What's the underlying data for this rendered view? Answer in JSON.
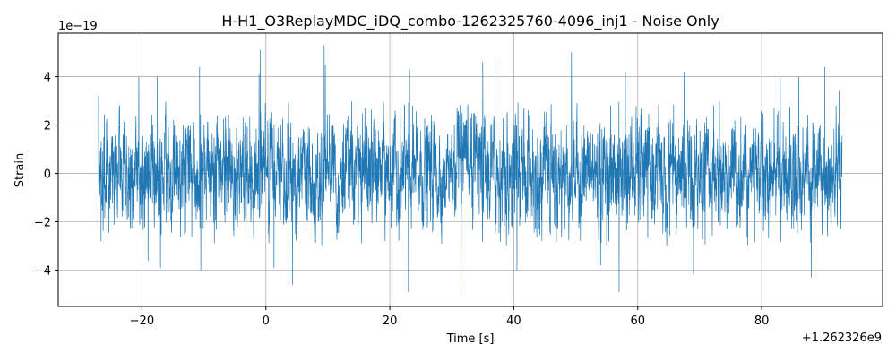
{
  "chart_data": {
    "type": "line",
    "title": "H-H1_O3ReplayMDC_iDQ_combo-1262325760-4096_inj1 - Noise Only",
    "xlabel": "Time [s]",
    "ylabel": "Strain",
    "x_offset_label": "+1.262326e9",
    "y_scale_label": "1e−19",
    "xlim": [
      -33.5,
      99.5
    ],
    "ylim": [
      -5.5,
      5.8
    ],
    "x_ticks": [
      -20,
      0,
      20,
      40,
      60,
      80
    ],
    "x_tick_labels": [
      "−20",
      "0",
      "20",
      "40",
      "60",
      "80"
    ],
    "y_ticks": [
      -4,
      -2,
      0,
      2,
      4
    ],
    "y_tick_labels": [
      "−4",
      "−2",
      "0",
      "2",
      "4"
    ],
    "grid": true,
    "series": [
      {
        "color": "#1f77b4",
        "x_range": [
          -27.0,
          93.0
        ],
        "typical_amplitude": 1.2,
        "envelope_max": 3.0,
        "peaks": [
          {
            "x": -27.0,
            "y": 3.2
          },
          {
            "x": -26.6,
            "y": -2.8
          },
          {
            "x": -20.5,
            "y": 4.0
          },
          {
            "x": -19.0,
            "y": -3.6
          },
          {
            "x": -17.5,
            "y": 4.0
          },
          {
            "x": -17.0,
            "y": -3.9
          },
          {
            "x": -10.7,
            "y": 4.4
          },
          {
            "x": -10.5,
            "y": -4.0
          },
          {
            "x": -1.1,
            "y": 4.1
          },
          {
            "x": 1.3,
            "y": -3.9
          },
          {
            "x": -0.9,
            "y": 5.1
          },
          {
            "x": 4.3,
            "y": -4.6
          },
          {
            "x": 9.4,
            "y": 5.3
          },
          {
            "x": 9.6,
            "y": 4.5
          },
          {
            "x": 23.0,
            "y": -4.9
          },
          {
            "x": 23.2,
            "y": 4.3
          },
          {
            "x": 31.5,
            "y": -5.0
          },
          {
            "x": 35.0,
            "y": 4.6
          },
          {
            "x": 37.0,
            "y": 4.6
          },
          {
            "x": 40.5,
            "y": -4.0
          },
          {
            "x": 49.3,
            "y": 5.0
          },
          {
            "x": 54.0,
            "y": -3.8
          },
          {
            "x": 57.0,
            "y": -4.9
          },
          {
            "x": 58.0,
            "y": 4.2
          },
          {
            "x": 67.5,
            "y": 4.2
          },
          {
            "x": 69.0,
            "y": -4.2
          },
          {
            "x": 83.0,
            "y": 4.0
          },
          {
            "x": 86.0,
            "y": 4.0
          },
          {
            "x": 88.0,
            "y": -4.3
          },
          {
            "x": 90.2,
            "y": 4.4
          },
          {
            "x": 92.5,
            "y": 3.4
          },
          {
            "x": 92.8,
            "y": -2.3
          }
        ]
      }
    ]
  }
}
